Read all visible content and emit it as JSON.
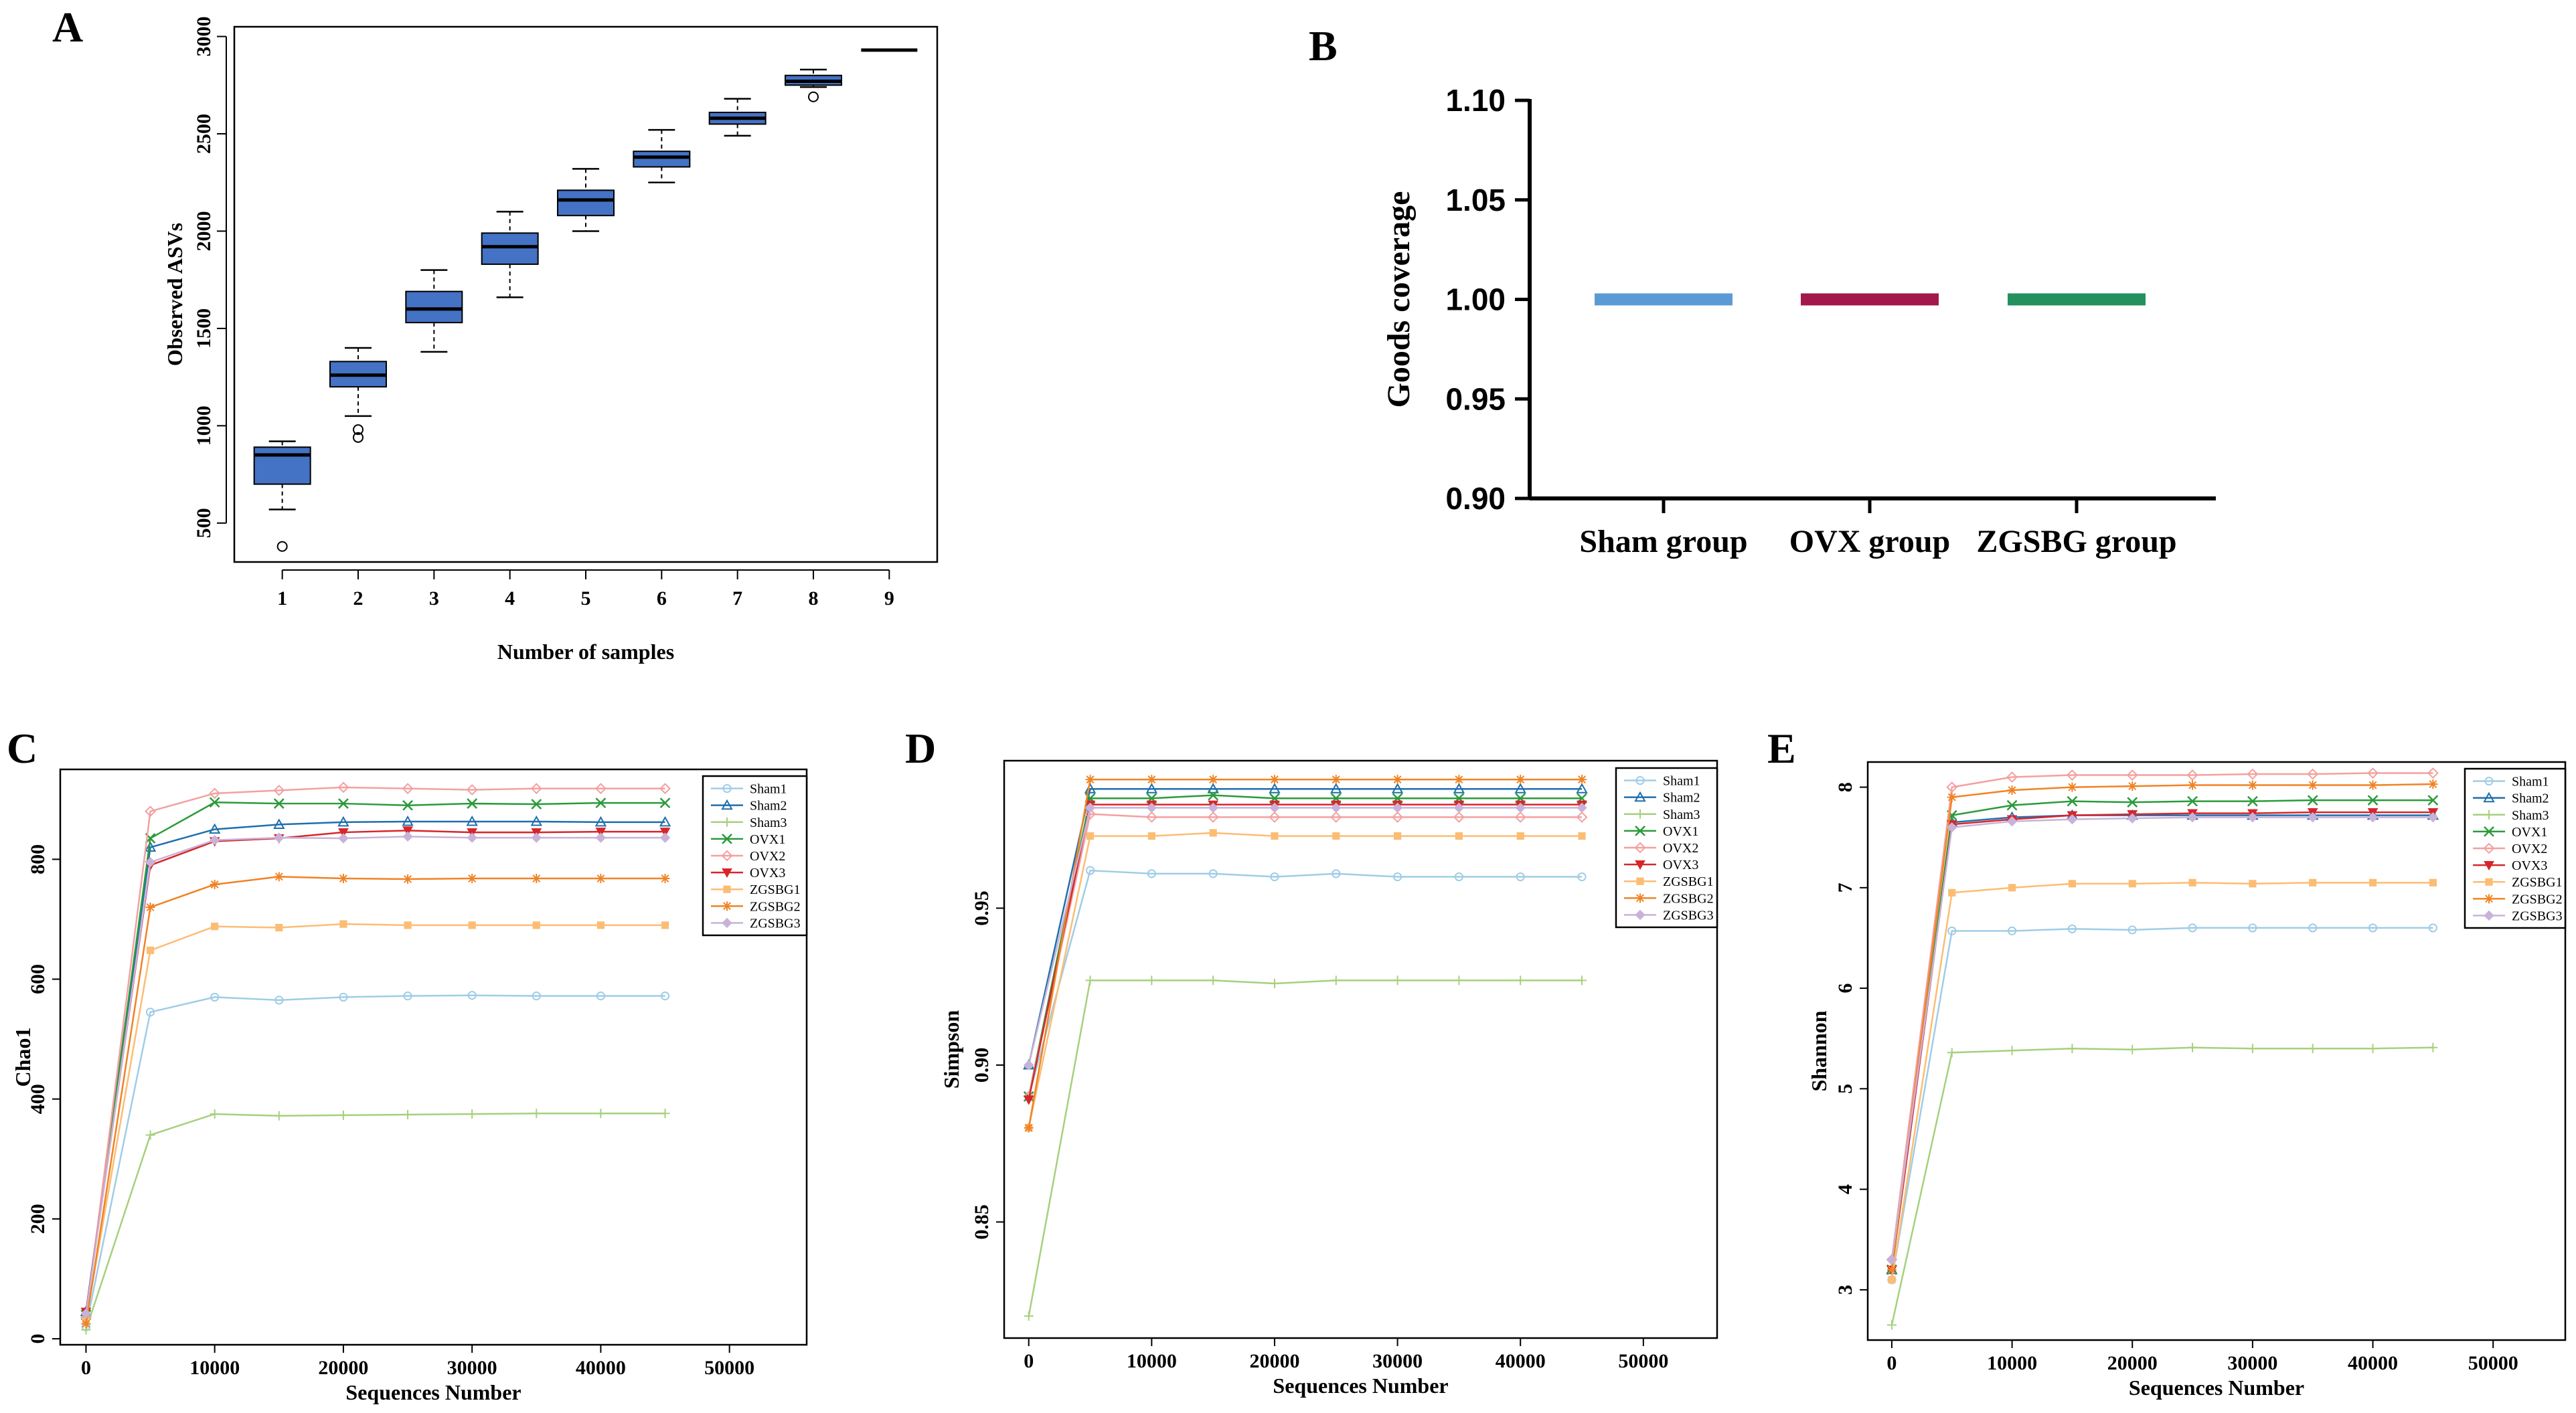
{
  "panels": {
    "A": {
      "letter": "A"
    },
    "B": {
      "letter": "B"
    },
    "C": {
      "letter": "C"
    },
    "D": {
      "letter": "D"
    },
    "E": {
      "letter": "E"
    }
  },
  "chart_data": [
    {
      "id": "A",
      "type": "boxplot",
      "title": "",
      "xlabel": "Number of samples",
      "ylabel": "Observed ASVs",
      "categories": [
        "1",
        "2",
        "3",
        "4",
        "5",
        "6",
        "7",
        "8",
        "9"
      ],
      "ylim": [
        300,
        3050
      ],
      "yticks": [
        500,
        1000,
        1500,
        2000,
        2500,
        3000
      ],
      "boxes": [
        {
          "min": 570,
          "q1": 700,
          "median": 850,
          "q3": 890,
          "max": 920,
          "outliers": [
            380
          ]
        },
        {
          "min": 1050,
          "q1": 1200,
          "median": 1260,
          "q3": 1330,
          "max": 1400,
          "outliers": [
            980,
            940
          ]
        },
        {
          "min": 1380,
          "q1": 1530,
          "median": 1600,
          "q3": 1690,
          "max": 1800,
          "outliers": []
        },
        {
          "min": 1660,
          "q1": 1830,
          "median": 1920,
          "q3": 1990,
          "max": 2100,
          "outliers": []
        },
        {
          "min": 2000,
          "q1": 2080,
          "median": 2160,
          "q3": 2210,
          "max": 2320,
          "outliers": []
        },
        {
          "min": 2250,
          "q1": 2330,
          "median": 2380,
          "q3": 2410,
          "max": 2520,
          "outliers": []
        },
        {
          "min": 2490,
          "q1": 2550,
          "median": 2580,
          "q3": 2610,
          "max": 2680,
          "outliers": []
        },
        {
          "min": 2740,
          "q1": 2750,
          "median": 2770,
          "q3": 2800,
          "max": 2830,
          "outliers": [
            2690
          ]
        },
        {
          "min": 2930,
          "q1": 2930,
          "median": 2930,
          "q3": 2930,
          "max": 2930,
          "outliers": []
        }
      ]
    },
    {
      "id": "B",
      "type": "bar",
      "ylabel": "Goods coverage",
      "xlabel": "",
      "categories": [
        "Sham group",
        "OVX group",
        "ZGSBG group"
      ],
      "values": [
        1.0,
        1.0,
        1.0
      ],
      "colors": [
        "#5b9bd5",
        "#a3174a",
        "#23905e"
      ],
      "ylim": [
        0.9,
        1.1
      ],
      "yticks": [
        "0.90",
        "0.95",
        "1.00",
        "1.05",
        "1.10"
      ]
    },
    {
      "id": "C",
      "type": "line",
      "xlabel": "Sequences Number",
      "ylabel": "Chao1",
      "xlim": [
        -2000,
        56000
      ],
      "ylim": [
        -10,
        950
      ],
      "xticks": [
        "0",
        "10000",
        "20000",
        "30000",
        "40000",
        "50000"
      ],
      "yticks": [
        "0",
        "200",
        "400",
        "600",
        "800"
      ],
      "x": [
        0,
        5000,
        10000,
        15000,
        20000,
        25000,
        30000,
        35000,
        40000,
        45000
      ],
      "series": [
        {
          "name": "Sham1",
          "values": [
            20,
            545,
            570,
            565,
            570,
            572,
            573,
            572,
            572,
            572
          ]
        },
        {
          "name": "Sham2",
          "values": [
            45,
            820,
            850,
            858,
            862,
            863,
            863,
            863,
            862,
            862
          ]
        },
        {
          "name": "Sham3",
          "values": [
            15,
            340,
            375,
            372,
            373,
            374,
            375,
            376,
            376,
            376
          ]
        },
        {
          "name": "OVX1",
          "values": [
            40,
            835,
            895,
            893,
            893,
            890,
            893,
            892,
            894,
            894
          ]
        },
        {
          "name": "OVX2",
          "values": [
            35,
            880,
            910,
            915,
            920,
            918,
            916,
            918,
            918,
            918
          ]
        },
        {
          "name": "OVX3",
          "values": [
            45,
            790,
            830,
            835,
            845,
            848,
            845,
            845,
            846,
            846
          ]
        },
        {
          "name": "ZGSBG1",
          "values": [
            30,
            648,
            688,
            686,
            692,
            690,
            690,
            690,
            690,
            690
          ]
        },
        {
          "name": "ZGSBG2",
          "values": [
            25,
            720,
            758,
            771,
            768,
            767,
            768,
            768,
            768,
            768
          ]
        },
        {
          "name": "ZGSBG3",
          "values": [
            42,
            795,
            832,
            836,
            835,
            838,
            836,
            836,
            836,
            836
          ]
        }
      ]
    },
    {
      "id": "D",
      "type": "line",
      "xlabel": "Sequences Number",
      "ylabel": "Simpson",
      "xlim": [
        -2000,
        56000
      ],
      "ylim": [
        0.813,
        0.997
      ],
      "xticks": [
        "0",
        "10000",
        "20000",
        "30000",
        "40000",
        "50000"
      ],
      "yticks": [
        "0.85",
        "0.90",
        "0.95"
      ],
      "x": [
        0,
        5000,
        10000,
        15000,
        20000,
        25000,
        30000,
        35000,
        40000,
        45000
      ],
      "series": [
        {
          "name": "Sham1",
          "values": [
            0.89,
            0.962,
            0.961,
            0.961,
            0.96,
            0.961,
            0.96,
            0.96,
            0.96,
            0.96
          ]
        },
        {
          "name": "Sham2",
          "values": [
            0.9,
            0.988,
            0.988,
            0.988,
            0.988,
            0.988,
            0.988,
            0.988,
            0.988,
            0.988
          ]
        },
        {
          "name": "Sham3",
          "values": [
            0.82,
            0.927,
            0.927,
            0.927,
            0.926,
            0.927,
            0.927,
            0.927,
            0.927,
            0.927
          ]
        },
        {
          "name": "OVX1",
          "values": [
            0.89,
            0.985,
            0.985,
            0.986,
            0.985,
            0.985,
            0.985,
            0.985,
            0.985,
            0.985
          ]
        },
        {
          "name": "OVX2",
          "values": [
            0.89,
            0.98,
            0.979,
            0.979,
            0.979,
            0.979,
            0.979,
            0.979,
            0.979,
            0.979
          ]
        },
        {
          "name": "OVX3",
          "values": [
            0.889,
            0.983,
            0.983,
            0.983,
            0.983,
            0.983,
            0.983,
            0.983,
            0.983,
            0.983
          ]
        },
        {
          "name": "ZGSBG1",
          "values": [
            0.88,
            0.973,
            0.973,
            0.974,
            0.973,
            0.973,
            0.973,
            0.973,
            0.973,
            0.973
          ]
        },
        {
          "name": "ZGSBG2",
          "values": [
            0.88,
            0.991,
            0.991,
            0.991,
            0.991,
            0.991,
            0.991,
            0.991,
            0.991,
            0.991
          ]
        },
        {
          "name": "ZGSBG3",
          "values": [
            0.9,
            0.982,
            0.982,
            0.982,
            0.982,
            0.982,
            0.982,
            0.982,
            0.982,
            0.982
          ]
        }
      ]
    },
    {
      "id": "E",
      "type": "line",
      "xlabel": "Sequences Number",
      "ylabel": "Shannon",
      "xlim": [
        -2000,
        56000
      ],
      "ylim": [
        2.5,
        8.25
      ],
      "xticks": [
        "0",
        "10000",
        "20000",
        "30000",
        "40000",
        "50000"
      ],
      "yticks": [
        "3",
        "4",
        "5",
        "6",
        "7",
        "8"
      ],
      "x": [
        0,
        5000,
        10000,
        15000,
        20000,
        25000,
        30000,
        35000,
        40000,
        45000
      ],
      "series": [
        {
          "name": "Sham1",
          "values": [
            3.1,
            6.57,
            6.57,
            6.59,
            6.58,
            6.6,
            6.6,
            6.6,
            6.6,
            6.6
          ]
        },
        {
          "name": "Sham2",
          "values": [
            3.2,
            7.65,
            7.7,
            7.72,
            7.72,
            7.72,
            7.72,
            7.72,
            7.72,
            7.72
          ]
        },
        {
          "name": "Sham3",
          "values": [
            2.65,
            5.36,
            5.38,
            5.4,
            5.39,
            5.41,
            5.4,
            5.4,
            5.4,
            5.41
          ]
        },
        {
          "name": "OVX1",
          "values": [
            3.2,
            7.72,
            7.82,
            7.86,
            7.85,
            7.86,
            7.86,
            7.87,
            7.87,
            7.87
          ]
        },
        {
          "name": "OVX2",
          "values": [
            3.3,
            8.0,
            8.1,
            8.12,
            8.12,
            8.12,
            8.13,
            8.13,
            8.14,
            8.14
          ]
        },
        {
          "name": "OVX3",
          "values": [
            3.2,
            7.63,
            7.68,
            7.72,
            7.73,
            7.74,
            7.74,
            7.75,
            7.75,
            7.75
          ]
        },
        {
          "name": "ZGSBG1",
          "values": [
            3.1,
            6.95,
            7.0,
            7.04,
            7.04,
            7.05,
            7.04,
            7.05,
            7.05,
            7.05
          ]
        },
        {
          "name": "ZGSBG2",
          "values": [
            3.2,
            7.9,
            7.97,
            8.0,
            8.01,
            8.02,
            8.02,
            8.02,
            8.02,
            8.03
          ]
        },
        {
          "name": "ZGSBG3",
          "values": [
            3.3,
            7.6,
            7.66,
            7.68,
            7.69,
            7.7,
            7.7,
            7.7,
            7.7,
            7.7
          ]
        }
      ]
    }
  ],
  "legend_styles": [
    {
      "name": "Sham1",
      "color": "#9fcde6",
      "marker": "circle"
    },
    {
      "name": "Sham2",
      "color": "#1f6fae",
      "marker": "triangle"
    },
    {
      "name": "Sham3",
      "color": "#a6d07d",
      "marker": "plus"
    },
    {
      "name": "OVX1",
      "color": "#2b9a3b",
      "marker": "x"
    },
    {
      "name": "OVX2",
      "color": "#f4a0a0",
      "marker": "diamond"
    },
    {
      "name": "OVX3",
      "color": "#d7262b",
      "marker": "tridown"
    },
    {
      "name": "ZGSBG1",
      "color": "#fbbd74",
      "marker": "square"
    },
    {
      "name": "ZGSBG2",
      "color": "#f08324",
      "marker": "star"
    },
    {
      "name": "ZGSBG3",
      "color": "#c9b2d8",
      "marker": "diamondfill"
    }
  ]
}
